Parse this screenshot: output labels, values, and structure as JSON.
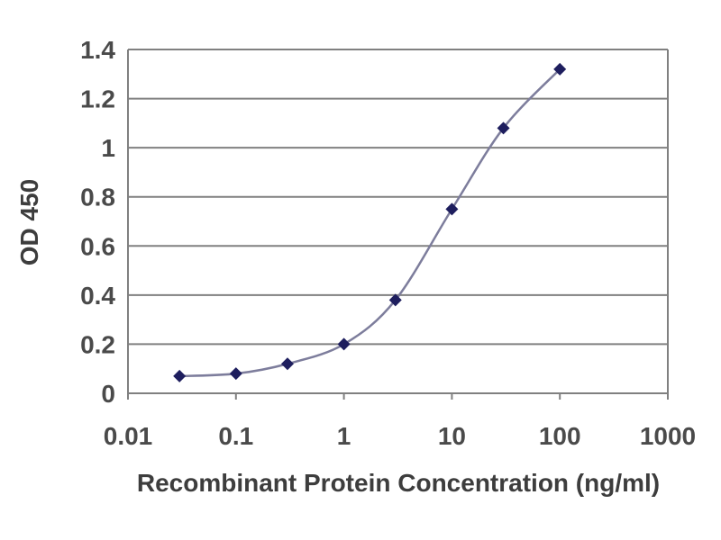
{
  "chart_data": {
    "type": "line",
    "title": "",
    "xlabel": "Recombinant Protein Concentration (ng/ml)",
    "ylabel": "OD 450",
    "x_scale": "log",
    "xlim": [
      0.01,
      1000
    ],
    "ylim": [
      0,
      1.4
    ],
    "x_ticks": [
      0.01,
      0.1,
      1,
      10,
      100,
      1000
    ],
    "x_tick_labels": [
      "0.01",
      "0.1",
      "1",
      "10",
      "100",
      "1000"
    ],
    "y_ticks": [
      0,
      0.2,
      0.4,
      0.6,
      0.8,
      1,
      1.2,
      1.4
    ],
    "y_tick_labels": [
      "0",
      "0.2",
      "0.4",
      "0.6",
      "0.8",
      "1",
      "1.2",
      "1.4"
    ],
    "grid": "horizontal",
    "legend": "none",
    "series": [
      {
        "name": "OD 450",
        "marker": "diamond",
        "x": [
          0.03,
          0.1,
          0.3,
          1,
          3,
          10,
          30,
          100
        ],
        "y": [
          0.07,
          0.08,
          0.12,
          0.2,
          0.38,
          0.75,
          1.08,
          1.32
        ]
      }
    ]
  },
  "colors": {
    "background": "#ffffff",
    "grid": "#808080",
    "axis": "#808080",
    "tick_text": "#4a4a4a",
    "title_text": "#3d3d3d",
    "line": "#7d7d9c",
    "marker": "#1e1e5e"
  }
}
